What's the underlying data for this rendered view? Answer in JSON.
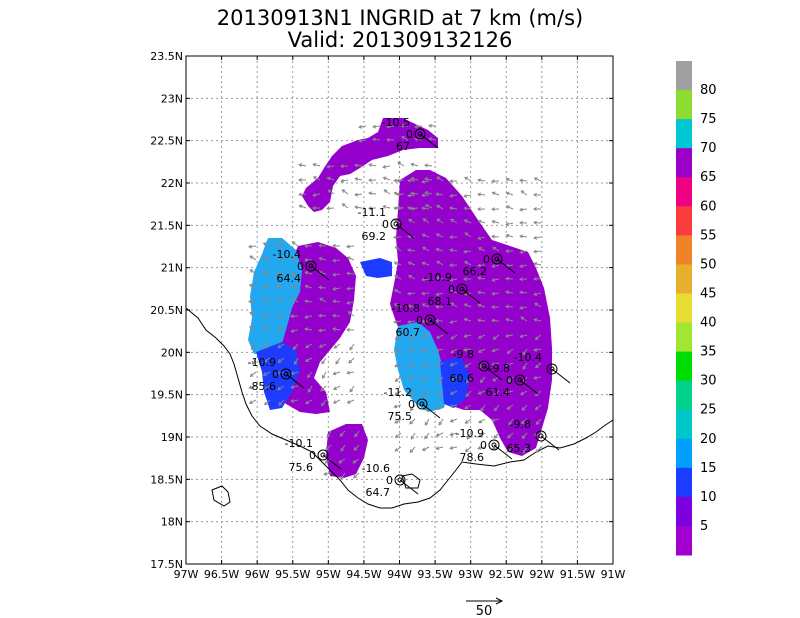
{
  "header": {
    "title_line1": "20130913N1 INGRID at 7 km (m/s)",
    "title_line2": "Valid: 201309132126"
  },
  "axes": {
    "y_ticks": [
      "23.5N",
      "23N",
      "22.5N",
      "22N",
      "21.5N",
      "21N",
      "20.5N",
      "20N",
      "19.5N",
      "19N",
      "18.5N",
      "18N",
      "17.5N"
    ],
    "x_ticks": [
      "97W",
      "96.5W",
      "96W",
      "95.5W",
      "95W",
      "94.5W",
      "94W",
      "93.5W",
      "93W",
      "92.5W",
      "92W",
      "91.5W",
      "91W"
    ]
  },
  "colorbar": {
    "labels": [
      "5",
      "10",
      "15",
      "20",
      "25",
      "30",
      "35",
      "40",
      "45",
      "50",
      "55",
      "60",
      "65",
      "70",
      "75",
      "80"
    ],
    "colors": [
      "#a000d0",
      "#7d00e0",
      "#1e3cff",
      "#00a0ff",
      "#00c8c8",
      "#00d28c",
      "#00dc00",
      "#a0e632",
      "#e6dc32",
      "#e6af2d",
      "#f08228",
      "#fa3c3c",
      "#f00082",
      "#9a00c8",
      "#00c8d2",
      "#8cdc32",
      "#a0a0a0"
    ]
  },
  "scale_arrow": {
    "label": "50"
  },
  "wind_colors": {
    "violet": "#9400cc",
    "blue": "#1e3cff",
    "lightblue": "#22a8f0"
  },
  "stations": [
    {
      "top": "-10.5",
      "mid": "0",
      "bot": "67"
    },
    {
      "top": "-11.1",
      "mid": "0",
      "bot": "69.2"
    },
    {
      "top": "-10.4",
      "mid": "0",
      "bot": "64.4"
    },
    {
      "top": "-10.9",
      "mid": "0",
      "bot": "68.1"
    },
    {
      "top": "",
      "mid": "0",
      "bot": "66.2"
    },
    {
      "top": "-10.8",
      "mid": "0",
      "bot": "60.7"
    },
    {
      "top": "-10.9",
      "mid": "0",
      "bot": "85.6"
    },
    {
      "top": "-9.8",
      "mid": "",
      "bot": "60.6"
    },
    {
      "top": "-9.8",
      "mid": "0",
      "bot": "61.4"
    },
    {
      "top": "-10.4",
      "mid": "",
      "bot": ""
    },
    {
      "top": "-11.2",
      "mid": "0",
      "bot": "75.5"
    },
    {
      "top": "-10.1",
      "mid": "0",
      "bot": "75.6"
    },
    {
      "top": "-10.9",
      "mid": "0",
      "bot": "78.6"
    },
    {
      "top": "-9.8",
      "mid": "",
      "bot": "65.3"
    },
    {
      "top": "-10.6",
      "mid": "0",
      "bot": "64.7"
    }
  ]
}
